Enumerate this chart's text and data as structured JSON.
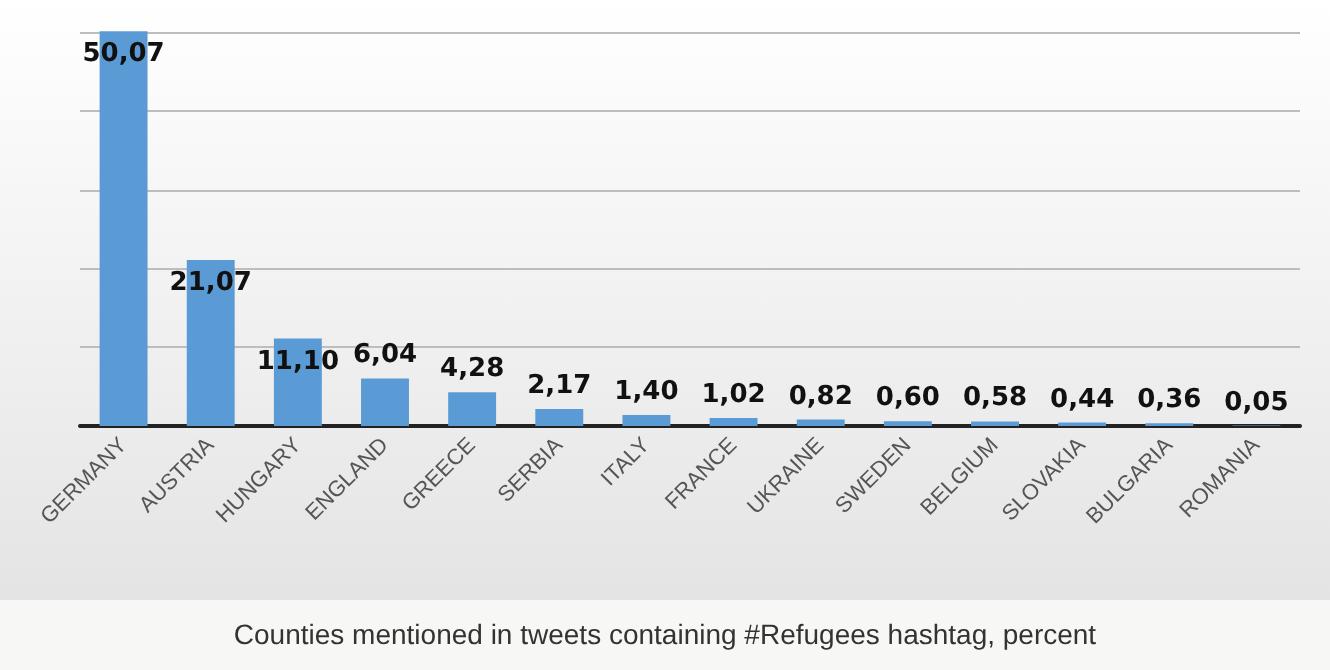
{
  "chart_data": {
    "type": "bar",
    "categories": [
      "GERMANY",
      "AUSTRIA",
      "HUNGARY",
      "ENGLAND",
      "GREECE",
      "SERBIA",
      "ITALY",
      "FRANCE",
      "UKRAINE",
      "SWEDEN",
      "BELGIUM",
      "SLOVAKIA",
      "BULGARIA",
      "ROMANIA"
    ],
    "values": [
      50.07,
      21.07,
      11.1,
      6.04,
      4.28,
      2.17,
      1.4,
      1.02,
      0.82,
      0.6,
      0.58,
      0.44,
      0.36,
      0.05
    ],
    "value_labels": [
      "50,07",
      "21,07",
      "11,10",
      "6,04",
      "4,28",
      "2,17",
      "1,40",
      "1,02",
      "0,82",
      "0,60",
      "0,58",
      "0,44",
      "0,36",
      "0,05"
    ],
    "color": "#5b9bd5",
    "ylim": [
      0,
      51
    ],
    "yticks": [
      {
        "value": 0,
        "label": null
      },
      {
        "value": 10,
        "label": null
      },
      {
        "value": 20,
        "label": null
      },
      {
        "value": 30,
        "label": null
      },
      {
        "value": 40,
        "label": null
      },
      {
        "value": 50,
        "label": null
      }
    ],
    "grid": "y",
    "tick_labels": "x",
    "annotations": [
      "Counties mentioned in tweets containing #Refugees hashtag, percent"
    ]
  }
}
